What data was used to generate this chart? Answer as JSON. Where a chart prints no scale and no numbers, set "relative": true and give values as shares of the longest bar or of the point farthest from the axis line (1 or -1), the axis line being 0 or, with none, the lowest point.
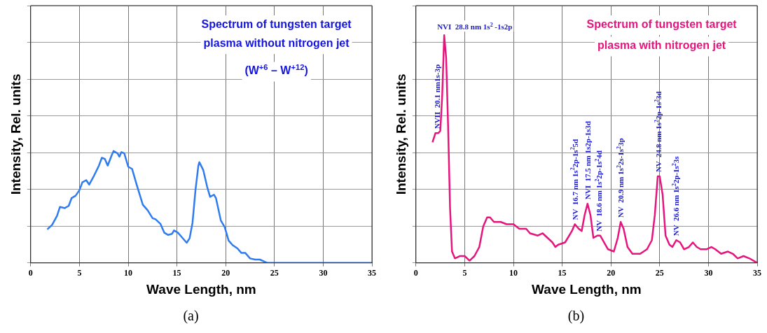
{
  "chart_data": [
    {
      "type": "line",
      "subtitle": "(a)",
      "xlabel": "Wave Length, nm",
      "ylabel": "Intensity, Rel. units",
      "relative": true,
      "grid": true,
      "xlim": [
        0,
        35
      ],
      "xticks": [
        0,
        5,
        10,
        15,
        20,
        25,
        30,
        35
      ],
      "annotations": [
        "Spectrum of tungsten target plasma without nitrogen jet",
        "(W$^{+6}$ – W$^{+12}$)"
      ],
      "x": [
        1.7,
        2.2,
        2.7,
        3.0,
        3.5,
        3.9,
        4.2,
        4.6,
        5.0,
        5.3,
        5.7,
        6.0,
        6.5,
        7.0,
        7.3,
        7.6,
        7.9,
        8.3,
        8.5,
        8.9,
        9.1,
        9.3,
        9.6,
        10.0,
        10.4,
        10.9,
        11.5,
        12.0,
        12.5,
        12.8,
        13.3,
        13.7,
        14.1,
        14.5,
        14.7,
        15.1,
        15.5,
        16.0,
        16.3,
        16.6,
        16.9,
        17.2,
        17.3,
        17.7,
        18.1,
        18.4,
        18.8,
        19.0,
        19.5,
        19.9,
        20.3,
        20.7,
        21.2,
        21.6,
        22.0,
        22.5,
        23.0,
        23.5,
        24.0,
        24.3,
        35
      ],
      "series": [
        {
          "color": "#2f7bf0",
          "values": [
            0.3,
            0.34,
            0.42,
            0.5,
            0.49,
            0.51,
            0.58,
            0.6,
            0.65,
            0.72,
            0.74,
            0.7,
            0.78,
            0.87,
            0.94,
            0.93,
            0.87,
            0.96,
            1.0,
            0.98,
            0.95,
            0.99,
            0.98,
            0.86,
            0.84,
            0.69,
            0.52,
            0.47,
            0.4,
            0.39,
            0.35,
            0.27,
            0.25,
            0.26,
            0.29,
            0.27,
            0.23,
            0.18,
            0.22,
            0.36,
            0.65,
            0.87,
            0.9,
            0.83,
            0.68,
            0.59,
            0.61,
            0.58,
            0.38,
            0.32,
            0.2,
            0.16,
            0.13,
            0.09,
            0.09,
            0.04,
            0.03,
            0.03,
            0.01,
            0,
            0
          ]
        }
      ]
    },
    {
      "type": "line",
      "subtitle": "(b)",
      "xlabel": "Wave Length, nm",
      "ylabel": "Intensity, Rel. units",
      "relative": true,
      "grid": true,
      "xlim": [
        0,
        35
      ],
      "xticks": [
        0,
        5,
        10,
        15,
        20,
        25,
        30,
        35
      ],
      "annotations": [
        "Spectrum of tungsten target plasma with nitrogen jet",
        {
          "text": "NVI  28.8 nm 1s$^{2}$ -1s2p",
          "x": 2.9,
          "y": 1.0
        },
        {
          "text": "NVII  20.1 nm1s-3p",
          "x": 2.2,
          "y": 0.57
        },
        {
          "text": "NV  16.7 nm 1s$^{2}$2p-1s$^{2}$5d",
          "x": 16.3,
          "y": 0.17
        },
        {
          "text": "NVI  17.5 nm 1s2p-1s3d",
          "x": 17.6,
          "y": 0.26
        },
        {
          "text": "NV  18.6 nm 1s$^{2}$2p-1s$^{2}$4d",
          "x": 18.8,
          "y": 0.12
        },
        {
          "text": "NV  20.9 nm 1s$^{2}$2s-1s$^{2}$3p",
          "x": 21.0,
          "y": 0.18
        },
        {
          "text": "NV  24.8 nm 1s$^{2}$2p-1s$^{2}$3d",
          "x": 24.9,
          "y": 0.38
        },
        {
          "text": "NV  26.6 nm 1s$^{2}$2p-1s$^{2}$3s",
          "x": 26.7,
          "y": 0.1
        }
      ],
      "x": [
        1.7,
        2.0,
        2.3,
        2.5,
        2.7,
        2.9,
        3.1,
        3.3,
        3.5,
        3.7,
        4.0,
        4.5,
        5.0,
        5.5,
        6.0,
        6.5,
        6.9,
        7.3,
        7.6,
        8.0,
        8.7,
        9.3,
        10.0,
        10.6,
        11.3,
        11.7,
        12.5,
        13.0,
        13.5,
        14.0,
        14.3,
        14.6,
        15.3,
        16.0,
        16.3,
        16.7,
        17.0,
        17.3,
        17.6,
        17.9,
        18.2,
        18.6,
        18.9,
        19.3,
        19.7,
        20.3,
        20.7,
        21.0,
        21.3,
        21.7,
        22.2,
        23.0,
        23.7,
        24.2,
        24.5,
        24.8,
        25.0,
        25.3,
        25.6,
        26.0,
        26.3,
        26.7,
        27.1,
        27.5,
        28.0,
        28.4,
        28.8,
        29.2,
        29.8,
        30.3,
        30.7,
        31.3,
        32.0,
        32.5,
        33.0,
        33.6,
        34.2,
        35.0
      ],
      "series": [
        {
          "color": "#e8147e",
          "values": [
            0.53,
            0.57,
            0.57,
            0.58,
            0.74,
            1.0,
            0.9,
            0.6,
            0.24,
            0.05,
            0.02,
            0.03,
            0.03,
            0.01,
            0.03,
            0.07,
            0.16,
            0.2,
            0.2,
            0.18,
            0.18,
            0.17,
            0.17,
            0.15,
            0.15,
            0.13,
            0.12,
            0.13,
            0.11,
            0.09,
            0.07,
            0.08,
            0.09,
            0.14,
            0.17,
            0.15,
            0.14,
            0.21,
            0.26,
            0.21,
            0.11,
            0.12,
            0.12,
            0.09,
            0.06,
            0.05,
            0.11,
            0.18,
            0.15,
            0.07,
            0.04,
            0.04,
            0.06,
            0.1,
            0.21,
            0.38,
            0.38,
            0.3,
            0.12,
            0.08,
            0.07,
            0.1,
            0.09,
            0.06,
            0.07,
            0.09,
            0.07,
            0.06,
            0.06,
            0.07,
            0.06,
            0.04,
            0.05,
            0.04,
            0.02,
            0.03,
            0.02,
            0.0
          ]
        }
      ]
    }
  ]
}
